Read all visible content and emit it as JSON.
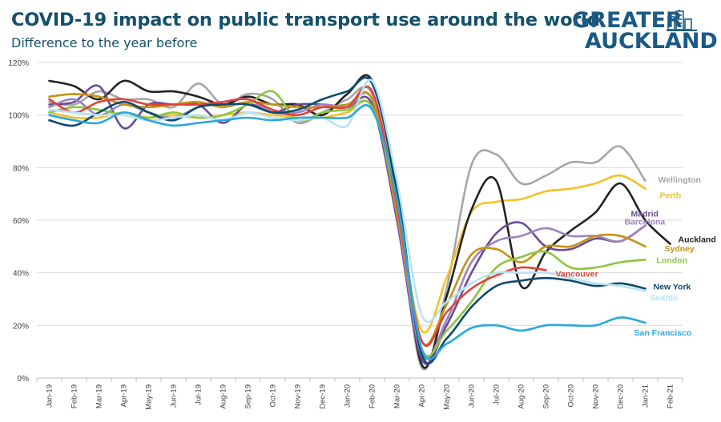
{
  "header": {
    "title": "COVID-19 impact on public transport use around the world",
    "subtitle": "Difference to the year before"
  },
  "logo": {
    "line1": "GREATER",
    "line2": "AUCKLAND"
  },
  "colors": {
    "title": "#15506b",
    "logo": "#1c5a86",
    "grid": "#d9d9d9",
    "axis": "#bfbfbf"
  },
  "chart_data": {
    "type": "line",
    "title": "COVID-19 impact on public transport use around the world",
    "subtitle": "Difference to the year before",
    "xlabel": "",
    "ylabel": "",
    "ylim": [
      0,
      120
    ],
    "yticks": [
      0,
      20,
      40,
      60,
      80,
      100,
      120
    ],
    "ytick_labels": [
      "0%",
      "20%",
      "40%",
      "60%",
      "80%",
      "100%",
      "120%"
    ],
    "grid": true,
    "categories": [
      "Jan-19",
      "Feb-19",
      "Mar-19",
      "Apr-19",
      "May-19",
      "Jun-19",
      "Jul-19",
      "Aug-19",
      "Sep-19",
      "Oct-19",
      "Nov-19",
      "Dec-19",
      "Jan-20",
      "Feb-20",
      "Mar-20",
      "Apr-20",
      "May-20",
      "Jun-20",
      "Jul-20",
      "Aug-20",
      "Sep-20",
      "Oct-20",
      "Nov-20",
      "Dec-20",
      "Jan-21",
      "Feb-21"
    ],
    "series": [
      {
        "name": "Wellington",
        "color": "#a6a6a6",
        "values": [
          105,
          104,
          109,
          106,
          106,
          103,
          112,
          104,
          108,
          106,
          97,
          101,
          106,
          108,
          65,
          4,
          34,
          81,
          85,
          74,
          77,
          82,
          82,
          88,
          75,
          null
        ]
      },
      {
        "name": "Perth",
        "color": "#f5c127",
        "values": [
          101,
          99,
          99,
          101,
          99,
          100,
          99,
          100,
          101,
          100,
          99,
          99,
          101,
          103,
          65,
          18,
          38,
          63,
          67,
          68,
          71,
          72,
          74,
          77,
          72,
          null
        ]
      },
      {
        "name": "Auckland",
        "color": "#222222",
        "values": [
          113,
          111,
          106,
          113,
          109,
          109,
          107,
          104,
          107,
          104,
          104,
          100,
          108,
          113,
          70,
          5,
          31,
          64,
          75,
          35,
          48,
          56,
          63,
          74,
          60,
          51
        ]
      },
      {
        "name": "Madrid",
        "color": "#6a4c93",
        "values": [
          104,
          105,
          111,
          95,
          104,
          104,
          104,
          97,
          104,
          101,
          104,
          104,
          103,
          104,
          60,
          7,
          20,
          40,
          55,
          59,
          50,
          49,
          53,
          52,
          58,
          null
        ]
      },
      {
        "name": "Barcelona",
        "color": "#9d84be",
        "values": [
          103,
          106,
          100,
          104,
          101,
          99,
          103,
          105,
          106,
          101,
          101,
          104,
          103,
          106,
          62,
          9,
          22,
          44,
          52,
          54,
          57,
          54,
          54,
          52,
          58,
          null
        ]
      },
      {
        "name": "Sydney",
        "color": "#c69214",
        "values": [
          107,
          108,
          107,
          104,
          103,
          104,
          105,
          103,
          105,
          104,
          103,
          103,
          104,
          106,
          63,
          14,
          28,
          47,
          49,
          44,
          50,
          50,
          54,
          54,
          50,
          null
        ]
      },
      {
        "name": "London",
        "color": "#8cc63f",
        "values": [
          101,
          103,
          102,
          100,
          99,
          101,
          99,
          100,
          104,
          109,
          98,
          101,
          102,
          103,
          66,
          11,
          18,
          29,
          42,
          46,
          48,
          42,
          42,
          44,
          45,
          null
        ]
      },
      {
        "name": "Vancouver",
        "color": "#e0423d",
        "values": [
          106,
          101,
          105,
          106,
          104,
          104,
          104,
          105,
          106,
          102,
          100,
          103,
          103,
          109,
          66,
          14,
          25,
          34,
          39,
          42,
          41,
          null,
          null,
          null,
          null,
          null
        ]
      },
      {
        "name": "New York",
        "color": "#0c4a6e",
        "values": [
          98,
          96,
          101,
          105,
          101,
          98,
          103,
          104,
          104,
          101,
          102,
          106,
          109,
          112,
          72,
          9,
          15,
          27,
          35,
          37,
          38,
          37,
          35,
          36,
          34,
          null
        ]
      },
      {
        "name": "Seattle",
        "color": "#b8e2f2",
        "values": [
          102,
          101,
          100,
          100,
          98,
          99,
          100,
          98,
          101,
          99,
          98,
          99,
          96,
          113,
          75,
          24,
          29,
          36,
          40,
          40,
          40,
          38,
          36,
          35,
          33,
          null
        ]
      },
      {
        "name": "San Francisco",
        "color": "#29a8e0",
        "values": [
          100,
          98,
          97,
          101,
          98,
          96,
          97,
          98,
          99,
          98,
          99,
          99,
          99,
          102,
          68,
          11,
          13,
          19,
          20,
          18,
          20,
          20,
          20,
          23,
          21,
          null
        ]
      }
    ],
    "labels": [
      {
        "text": "Wellington",
        "series": "Wellington"
      },
      {
        "text": "Perth",
        "series": "Perth"
      },
      {
        "text": "Madrid",
        "series": "Madrid"
      },
      {
        "text": "Barcelona",
        "series": "Barcelona"
      },
      {
        "text": "Auckland",
        "series": "Auckland"
      },
      {
        "text": "Sydney",
        "series": "Sydney"
      },
      {
        "text": "London",
        "series": "London"
      },
      {
        "text": "Vancouver",
        "series": "Vancouver"
      },
      {
        "text": "New York",
        "series": "New York"
      },
      {
        "text": "Seattle",
        "series": "Seattle"
      },
      {
        "text": "San Francisco",
        "series": "San Francisco"
      }
    ]
  }
}
